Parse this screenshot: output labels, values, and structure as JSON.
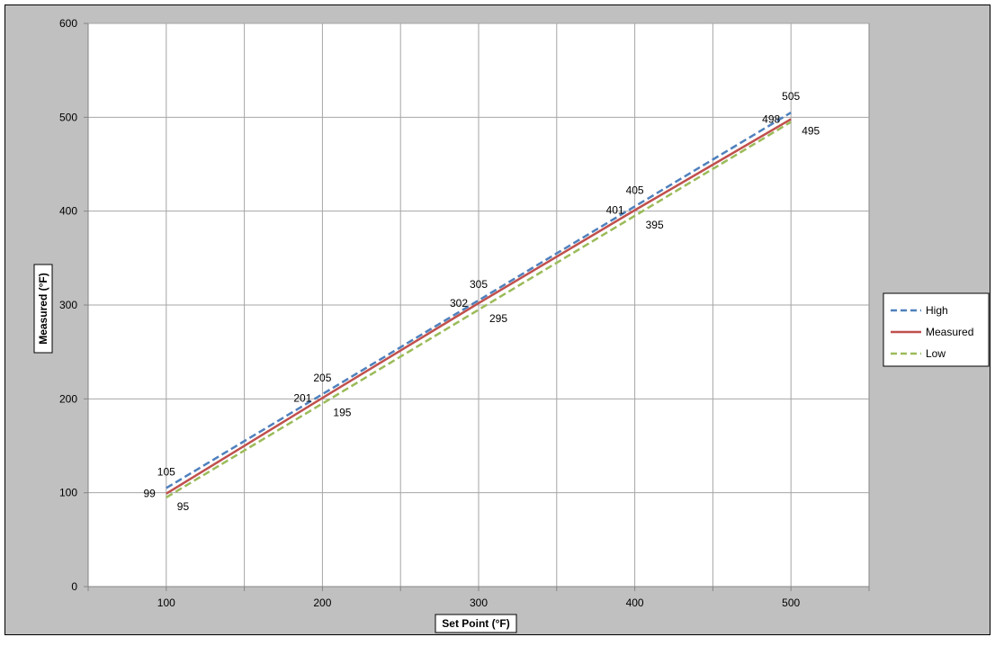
{
  "chart_data": {
    "type": "line",
    "title": "",
    "xlabel": "Set Point (°F)",
    "ylabel": "Measured (°F)",
    "x": [
      100,
      200,
      300,
      400,
      500
    ],
    "xlim": [
      50,
      550
    ],
    "ylim": [
      0,
      600
    ],
    "x_ticks": [
      100,
      200,
      300,
      400,
      500
    ],
    "y_ticks": [
      0,
      100,
      200,
      300,
      400,
      500,
      600
    ],
    "grid": true,
    "legend_position": "right",
    "series": [
      {
        "name": "High",
        "values": [
          105,
          205,
          305,
          405,
          505
        ],
        "color": "#4f81bd",
        "style": "dashed"
      },
      {
        "name": "Measured",
        "values": [
          99,
          201,
          302,
          401,
          498
        ],
        "color": "#c0504d",
        "style": "solid"
      },
      {
        "name": "Low",
        "values": [
          95,
          195,
          295,
          395,
          495
        ],
        "color": "#9bbb59",
        "style": "dashed"
      }
    ]
  }
}
